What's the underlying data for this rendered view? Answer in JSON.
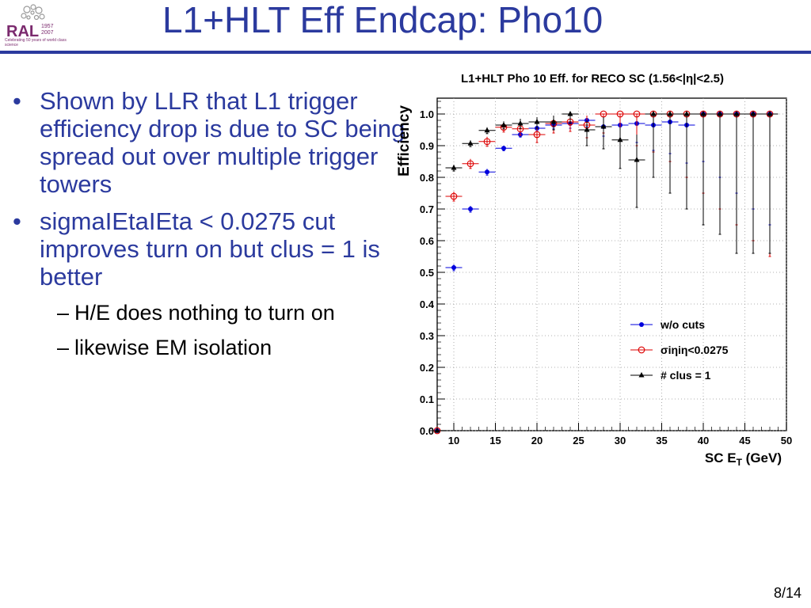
{
  "logo": {
    "text": "RAL",
    "years": "1957\n2007",
    "tagline": "Celebrating 50 years of world class science"
  },
  "slide": {
    "title": "L1+HLT Eff Endcap: Pho10",
    "page": "8/14"
  },
  "bullets": [
    "Shown by LLR that L1 trigger efficiency drop is due to SC being spread out over multiple trigger towers",
    "sigmaIEtaIEta < 0.0275 cut improves turn on but clus = 1 is better"
  ],
  "subbullets": [
    "H/E does nothing to turn on",
    "likewise EM isolation"
  ],
  "colors": {
    "title": "#2b3a9e",
    "series_blue": "#0000dd",
    "series_red": "#dd0000",
    "series_black": "#000000"
  },
  "chart_data": {
    "type": "scatter",
    "title": "L1+HLT Pho 10 Eff. for RECO SC (1.56<|η|<2.5)",
    "xlabel": "SC E_T (GeV)",
    "ylabel": "Efficiency",
    "xlim": [
      8,
      50
    ],
    "ylim": [
      0,
      1.05
    ],
    "xticks": [
      10,
      15,
      20,
      25,
      30,
      35,
      40,
      45,
      50
    ],
    "yticks": [
      0.0,
      0.1,
      0.2,
      0.3,
      0.4,
      0.5,
      0.6,
      0.7,
      0.8,
      0.9,
      1.0
    ],
    "grid": true,
    "legend_position": "bottom-right",
    "series": [
      {
        "name": "w/o cuts",
        "marker": "circle",
        "color": "#0000dd",
        "x": [
          8,
          10,
          12,
          14,
          16,
          18,
          20,
          22,
          24,
          26,
          28,
          30,
          32,
          34,
          36,
          38,
          40,
          42,
          44,
          46,
          48
        ],
        "y": [
          0.0,
          0.515,
          0.7,
          0.817,
          0.892,
          0.935,
          0.955,
          0.965,
          0.97,
          0.98,
          0.96,
          0.965,
          0.97,
          0.965,
          0.975,
          0.965,
          1.0,
          1.0,
          1.0,
          1.0,
          1.0
        ],
        "yerr_low": [
          0,
          0.01,
          0.01,
          0.01,
          0.008,
          0.008,
          0.01,
          0.012,
          0.015,
          0.02,
          0.03,
          0.05,
          0.06,
          0.08,
          0.1,
          0.12,
          0.15,
          0.2,
          0.25,
          0.3,
          0.35
        ],
        "yerr_high": [
          0,
          0.01,
          0.01,
          0.01,
          0.008,
          0.008,
          0.01,
          0.012,
          0.015,
          0.015,
          0.02,
          0.03,
          0.03,
          0.03,
          0.025,
          0.035,
          0,
          0,
          0,
          0,
          0
        ]
      },
      {
        "name": "σiηiη<0.0275",
        "marker": "open-circle",
        "color": "#dd0000",
        "x": [
          8,
          10,
          12,
          14,
          16,
          18,
          20,
          22,
          24,
          26,
          28,
          30,
          32,
          34,
          36,
          38,
          40,
          42,
          44,
          46,
          48
        ],
        "y": [
          0.0,
          0.74,
          0.843,
          0.913,
          0.958,
          0.953,
          0.935,
          0.97,
          0.975,
          0.965,
          1.0,
          1.0,
          1.0,
          1.0,
          1.0,
          1.0,
          1.0,
          1.0,
          1.0,
          1.0,
          1.0
        ],
        "yerr_low": [
          0,
          0.015,
          0.015,
          0.015,
          0.015,
          0.02,
          0.025,
          0.03,
          0.03,
          0.04,
          0.06,
          0.08,
          0.1,
          0.12,
          0.15,
          0.2,
          0.25,
          0.3,
          0.35,
          0.4,
          0.45
        ],
        "yerr_high": [
          0,
          0.015,
          0.015,
          0.015,
          0.015,
          0.02,
          0.025,
          0.02,
          0.02,
          0.03,
          0,
          0,
          0,
          0,
          0,
          0,
          0,
          0,
          0,
          0,
          0
        ]
      },
      {
        "name": "# clus = 1",
        "marker": "triangle",
        "color": "#000000",
        "x": [
          8,
          10,
          12,
          14,
          16,
          18,
          20,
          22,
          24,
          26,
          28,
          30,
          32,
          34,
          36,
          38,
          40,
          42,
          44,
          46,
          48
        ],
        "y": [
          0.0,
          0.83,
          0.907,
          0.948,
          0.965,
          0.97,
          0.975,
          0.975,
          1.0,
          0.95,
          0.96,
          0.918,
          0.855,
          1.0,
          1.0,
          1.0,
          1.0,
          1.0,
          1.0,
          1.0,
          1.0
        ],
        "yerr_low": [
          0,
          0.01,
          0.01,
          0.01,
          0.012,
          0.015,
          0.02,
          0.025,
          0.03,
          0.05,
          0.07,
          0.09,
          0.15,
          0.2,
          0.25,
          0.3,
          0.35,
          0.38,
          0.44,
          0.44,
          0.44
        ],
        "yerr_high": [
          0,
          0.01,
          0.01,
          0.01,
          0.012,
          0.015,
          0.015,
          0.02,
          0,
          0.03,
          0.03,
          0.04,
          0.08,
          0,
          0,
          0,
          0,
          0,
          0,
          0,
          0
        ]
      }
    ]
  }
}
